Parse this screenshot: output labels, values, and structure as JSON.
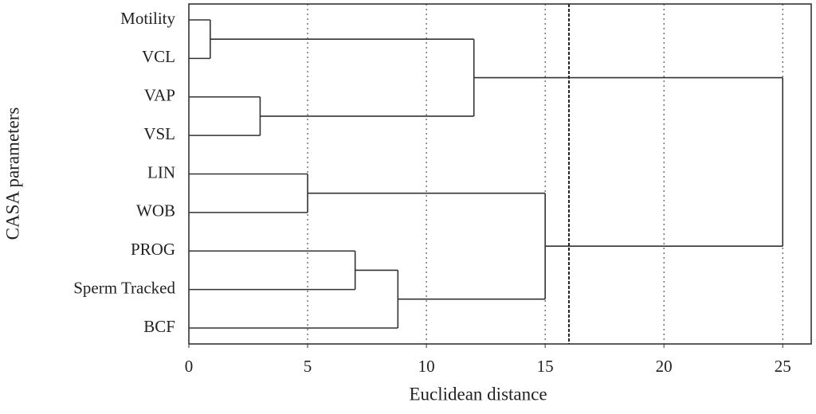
{
  "chart_data": {
    "type": "dendrogram",
    "orientation": "horizontal",
    "categories": [
      "Motility",
      "VCL",
      "VAP",
      "VSL",
      "LIN",
      "WOB",
      "PROG",
      "Sperm Tracked",
      "BCF"
    ],
    "merges": [
      {
        "children": [
          0,
          1
        ],
        "distance": 0.9
      },
      {
        "children": [
          2,
          3
        ],
        "distance": 3
      },
      {
        "children": [
          9,
          10
        ],
        "distance": 12
      },
      {
        "children": [
          4,
          5
        ],
        "distance": 5
      },
      {
        "children": [
          6,
          7
        ],
        "distance": 7
      },
      {
        "children": [
          13,
          8
        ],
        "distance": 8.8
      },
      {
        "children": [
          12,
          14
        ],
        "distance": 15
      },
      {
        "children": [
          11,
          15
        ],
        "distance": 25
      }
    ],
    "cutoff": 16,
    "xlim": [
      0,
      26.2
    ],
    "xticks": [
      0,
      5,
      10,
      15,
      20,
      25
    ],
    "grid": true,
    "xlabel": "Euclidean distance",
    "ylabel": "CASA parameters",
    "color": "#333333"
  }
}
